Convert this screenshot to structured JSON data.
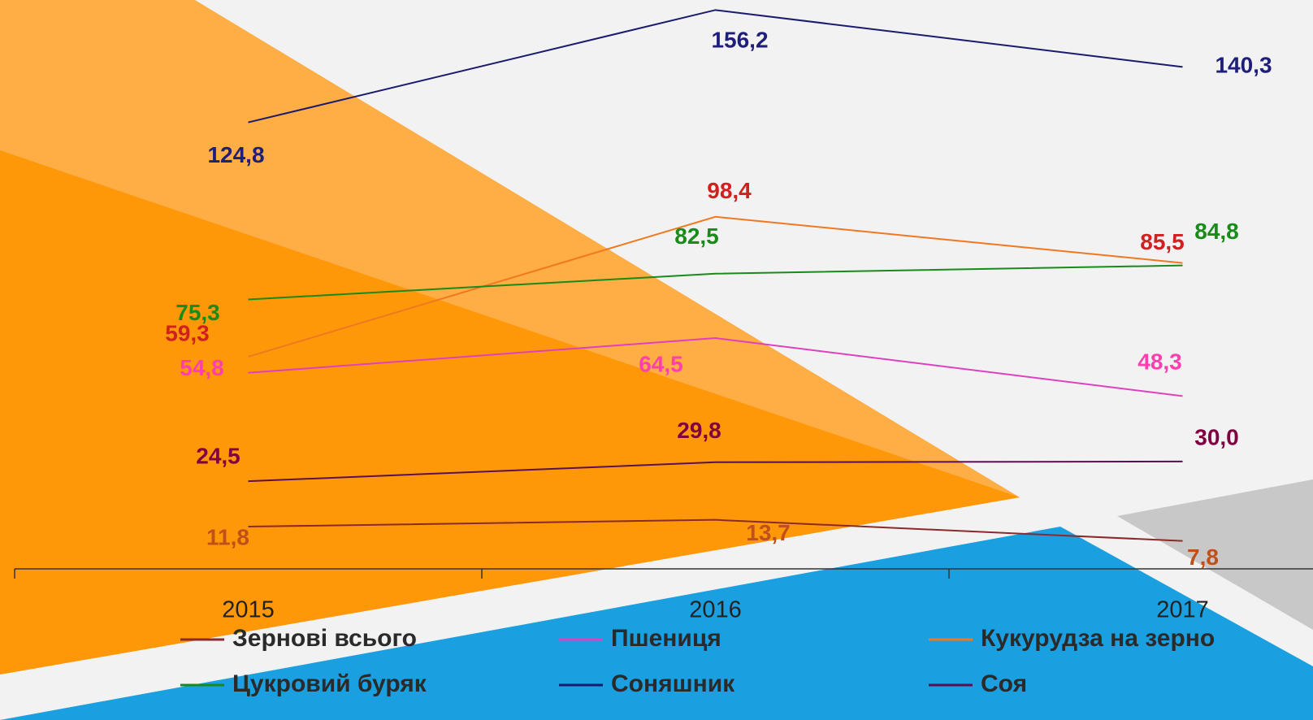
{
  "chart_data": {
    "type": "line",
    "categories": [
      "2015",
      "2016",
      "2017"
    ],
    "ylim": [
      0,
      159
    ],
    "series": [
      {
        "name": "Зернові всього",
        "color": "#8b2a2a",
        "label_color": "#c0501a",
        "values": [
          11.8,
          13.7,
          7.8
        ],
        "value_labels": [
          "11,8",
          "13,7",
          "7,8"
        ]
      },
      {
        "name": "Пшениця",
        "color": "#e040c0",
        "label_color": "#ff3fb0",
        "values": [
          54.8,
          64.5,
          48.3
        ],
        "value_labels": [
          "54,8",
          "64,5",
          "48,3"
        ]
      },
      {
        "name": "Кукурудза на зерно",
        "color": "#f07820",
        "label_color": "#d02020",
        "values": [
          59.3,
          98.4,
          85.5
        ],
        "value_labels": [
          "59,3",
          "98,4",
          "85,5"
        ]
      },
      {
        "name": "Цукровий буряк",
        "color": "#1a8a1a",
        "label_color": "#1a8a1a",
        "values": [
          75.3,
          82.5,
          84.8
        ],
        "value_labels": [
          "75,3",
          "82,5",
          "84,8"
        ]
      },
      {
        "name": "Соняшник",
        "color": "#1a1a6e",
        "label_color": "#1f1f7a",
        "values": [
          124.8,
          156.2,
          140.3
        ],
        "value_labels": [
          "124,8",
          "156,2",
          "140,3"
        ]
      },
      {
        "name": "Соя",
        "color": "#5a1050",
        "label_color": "#800040",
        "values": [
          24.5,
          29.8,
          30.0
        ],
        "value_labels": [
          "24,5",
          "29,8",
          "30,0"
        ]
      }
    ]
  }
}
